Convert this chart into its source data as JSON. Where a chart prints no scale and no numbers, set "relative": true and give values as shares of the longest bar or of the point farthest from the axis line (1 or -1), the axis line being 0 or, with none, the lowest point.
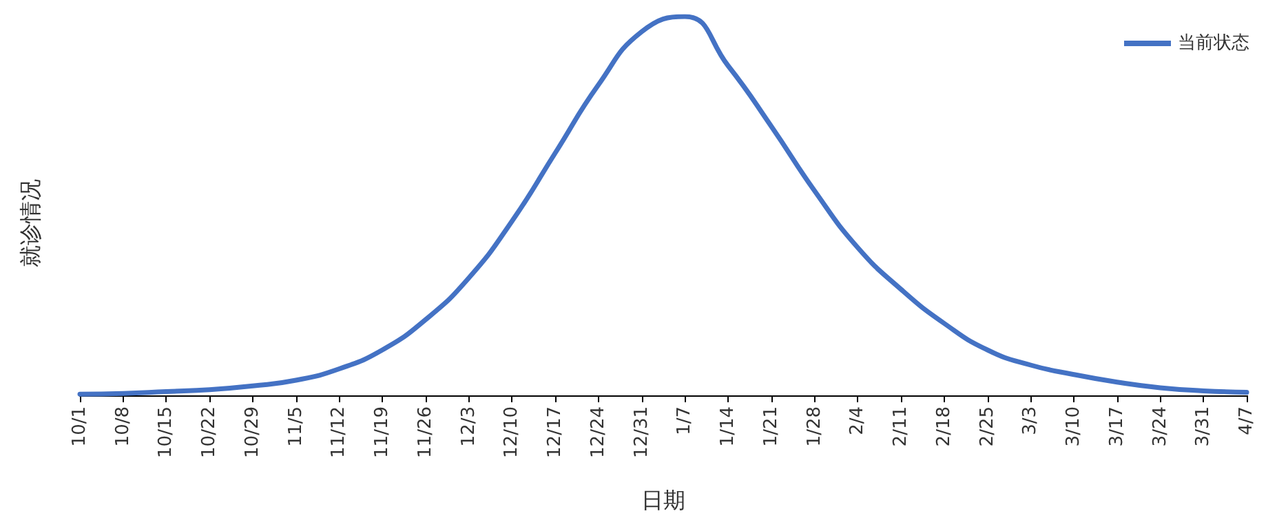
{
  "chart_data": {
    "type": "line",
    "xlabel": "日期",
    "ylabel": "就诊情况",
    "relative": true,
    "categories": [
      "10/1",
      "10/8",
      "10/15",
      "10/22",
      "10/29",
      "11/5",
      "11/12",
      "11/19",
      "11/26",
      "12/3",
      "12/10",
      "12/17",
      "12/24",
      "12/31",
      "1/7",
      "1/14",
      "1/21",
      "1/28",
      "2/4",
      "2/11",
      "2/18",
      "2/25",
      "3/3",
      "3/10",
      "3/17",
      "3/24",
      "3/31",
      "4/7"
    ],
    "series": [
      {
        "name": "当前状态",
        "color": "#4472c4",
        "values": [
          0.003,
          0.005,
          0.01,
          0.015,
          0.025,
          0.04,
          0.07,
          0.12,
          0.2,
          0.31,
          0.46,
          0.64,
          0.82,
          0.96,
          1,
          0.87,
          0.71,
          0.54,
          0.39,
          0.28,
          0.19,
          0.12,
          0.08,
          0.055,
          0.035,
          0.02,
          0.012,
          0.008
        ]
      }
    ],
    "legend": "top right",
    "marker": "none",
    "line_style": "solid",
    "grid": false
  }
}
